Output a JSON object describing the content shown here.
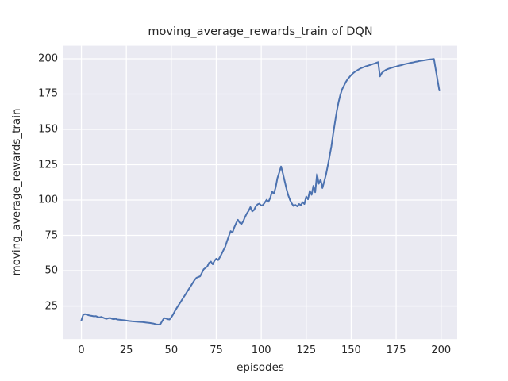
{
  "chart_data": {
    "type": "line",
    "title": "moving_average_rewards_train of DQN",
    "xlabel": "episodes",
    "ylabel": "moving_average_rewards_train",
    "xticks": [
      0,
      25,
      50,
      75,
      100,
      125,
      150,
      175,
      200
    ],
    "yticks": [
      25,
      50,
      75,
      100,
      125,
      150,
      175,
      200
    ],
    "xlim": [
      -9.95,
      208.95
    ],
    "ylim": [
      1.6,
      209.2
    ],
    "grid": true,
    "legend": "none",
    "axes_bg": "#EAEAF2",
    "grid_color": "#FFFFFF",
    "line_color": "#4C72B0",
    "text_color": "#262626",
    "x": [
      0,
      1,
      2,
      3,
      4,
      5,
      6,
      7,
      8,
      9,
      10,
      11,
      12,
      13,
      14,
      15,
      16,
      17,
      18,
      19,
      20,
      22,
      24,
      26,
      28,
      30,
      32,
      34,
      36,
      38,
      40,
      42,
      43,
      44,
      45,
      46,
      47,
      48,
      49,
      50,
      51,
      52,
      53,
      54,
      55,
      56,
      57,
      58,
      59,
      60,
      61,
      62,
      63,
      64,
      65,
      66,
      67,
      68,
      69,
      70,
      71,
      72,
      73,
      74,
      75,
      76,
      77,
      78,
      79,
      80,
      81,
      82,
      83,
      84,
      85,
      86,
      87,
      88,
      89,
      90,
      91,
      92,
      93,
      94,
      95,
      96,
      97,
      98,
      99,
      100,
      101,
      102,
      103,
      104,
      105,
      106,
      107,
      108,
      109,
      110,
      111,
      112,
      113,
      114,
      115,
      116,
      117,
      118,
      119,
      120,
      121,
      122,
      123,
      124,
      125,
      126,
      127,
      128,
      129,
      130,
      131,
      132,
      133,
      134,
      135,
      136,
      137,
      138,
      139,
      140,
      141,
      142,
      143,
      144,
      145,
      146,
      147,
      148,
      149,
      150,
      151,
      152,
      153,
      154,
      155,
      156,
      157,
      158,
      159,
      160,
      161,
      162,
      163,
      164,
      165,
      166,
      167,
      168,
      169,
      170,
      171,
      172,
      173,
      174,
      175,
      176,
      177,
      178,
      179,
      180,
      181,
      182,
      183,
      184,
      185,
      186,
      187,
      188,
      189,
      190,
      191,
      192,
      193,
      194,
      195,
      196,
      197,
      198,
      199
    ],
    "y": [
      14.8,
      18.8,
      19.3,
      18.9,
      18.5,
      18.2,
      18.0,
      17.7,
      17.9,
      17.3,
      17.0,
      17.3,
      16.8,
      16.3,
      16.0,
      16.4,
      16.6,
      16.0,
      15.7,
      15.9,
      15.5,
      15.2,
      14.9,
      14.5,
      14.2,
      14.0,
      13.8,
      13.6,
      13.3,
      13.0,
      12.6,
      11.9,
      11.8,
      12.3,
      14.5,
      16.5,
      16.2,
      15.7,
      15.5,
      17.0,
      19.0,
      21.5,
      23.5,
      25.5,
      27.5,
      29.5,
      31.5,
      33.5,
      35.5,
      37.5,
      39.5,
      41.5,
      43.5,
      45.0,
      45.5,
      46.0,
      48.5,
      51.0,
      52.0,
      53.0,
      55.5,
      56.5,
      54.5,
      57.0,
      58.5,
      57.5,
      59.5,
      62.0,
      64.5,
      67.0,
      71.0,
      74.5,
      78.0,
      77.0,
      80.5,
      83.5,
      86.0,
      84.0,
      83.0,
      85.0,
      88.0,
      90.5,
      92.5,
      95.0,
      92.0,
      93.0,
      95.5,
      97.0,
      97.5,
      96.0,
      96.5,
      98.3,
      100.2,
      98.8,
      101.5,
      106.0,
      104.5,
      109.0,
      115.5,
      119.5,
      123.7,
      119.0,
      113.5,
      108.0,
      103.5,
      100.0,
      97.5,
      95.8,
      96.5,
      95.5,
      97.2,
      96.3,
      98.5,
      97.2,
      102.5,
      100.5,
      106.5,
      103.7,
      110.0,
      105.5,
      118.4,
      111.5,
      114.5,
      108.5,
      113.0,
      118.0,
      124.5,
      131.0,
      138.0,
      147.0,
      155.0,
      163.0,
      169.5,
      174.5,
      178.5,
      181.0,
      183.5,
      185.5,
      187.0,
      188.5,
      189.7,
      190.7,
      191.5,
      192.3,
      193.0,
      193.6,
      194.1,
      194.6,
      195.0,
      195.4,
      195.8,
      196.2,
      196.6,
      197.1,
      197.6,
      187.5,
      189.8,
      191.0,
      191.9,
      192.5,
      193.0,
      193.4,
      193.8,
      194.2,
      194.5,
      194.9,
      195.2,
      195.5,
      195.9,
      196.2,
      196.5,
      196.8,
      197.1,
      197.3,
      197.6,
      197.9,
      198.1,
      198.4,
      198.6,
      198.8,
      199.0,
      199.2,
      199.4,
      199.6,
      199.7,
      199.9,
      192.5,
      185.0,
      177.5
    ]
  }
}
